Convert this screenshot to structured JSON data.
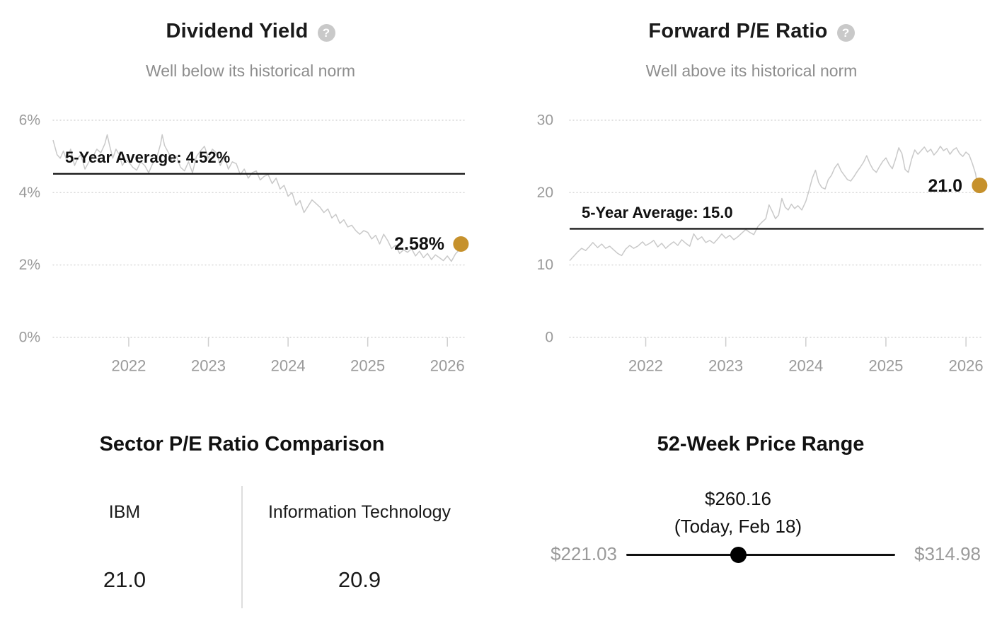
{
  "colors": {
    "accent_dot": "#c6912c",
    "series_line": "#c9c9c9",
    "grid_line": "#d6d6d6",
    "tick_mark": "#cfcfcf",
    "axis_text": "#9a9a9a",
    "subtitle_text": "#8d8d8d",
    "average_line": "#111111",
    "divider": "#dedede",
    "slider": "#111111",
    "help_icon_bg": "#c9c9c9"
  },
  "chart_data": [
    {
      "type": "line",
      "title": "Dividend Yield",
      "subtitle": "Well below its historical norm",
      "help_icon": "?",
      "legend_position": "none",
      "grid": "dotted-horizontal",
      "xlim": [
        2021.05,
        2026.22
      ],
      "ylim": [
        0,
        6
      ],
      "x_ticks": [
        {
          "value": 2022,
          "label": "2022"
        },
        {
          "value": 2023,
          "label": "2023"
        },
        {
          "value": 2024,
          "label": "2024"
        },
        {
          "value": 2025,
          "label": "2025"
        },
        {
          "value": 2026,
          "label": "2026"
        }
      ],
      "y_ticks": [
        {
          "value": 0,
          "label": "0%"
        },
        {
          "value": 2,
          "label": "2%"
        },
        {
          "value": 4,
          "label": "4%"
        },
        {
          "value": 6,
          "label": "6%"
        }
      ],
      "average": {
        "label": "5-Year Average: 4.52%",
        "value": 4.52
      },
      "current": {
        "label": "2.58%",
        "value": 2.58,
        "x": 2026.17
      },
      "series": [
        {
          "name": "Dividend Yield",
          "points": [
            [
              2021.05,
              5.45
            ],
            [
              2021.1,
              5.05
            ],
            [
              2021.14,
              4.95
            ],
            [
              2021.18,
              5.15
            ],
            [
              2021.22,
              4.9
            ],
            [
              2021.27,
              5.2
            ],
            [
              2021.32,
              4.75
            ],
            [
              2021.36,
              4.95
            ],
            [
              2021.4,
              5.05
            ],
            [
              2021.45,
              4.65
            ],
            [
              2021.5,
              4.85
            ],
            [
              2021.55,
              5.0
            ],
            [
              2021.6,
              5.2
            ],
            [
              2021.65,
              5.1
            ],
            [
              2021.7,
              5.35
            ],
            [
              2021.73,
              5.6
            ],
            [
              2021.76,
              5.3
            ],
            [
              2021.8,
              4.95
            ],
            [
              2021.84,
              5.2
            ],
            [
              2021.88,
              5.05
            ],
            [
              2021.92,
              4.75
            ],
            [
              2021.96,
              4.9
            ],
            [
              2022.0,
              4.85
            ],
            [
              2022.05,
              4.7
            ],
            [
              2022.1,
              4.62
            ],
            [
              2022.15,
              4.85
            ],
            [
              2022.2,
              4.75
            ],
            [
              2022.25,
              4.55
            ],
            [
              2022.3,
              4.8
            ],
            [
              2022.35,
              4.95
            ],
            [
              2022.4,
              5.35
            ],
            [
              2022.42,
              5.6
            ],
            [
              2022.45,
              5.3
            ],
            [
              2022.5,
              5.1
            ],
            [
              2022.55,
              4.85
            ],
            [
              2022.6,
              5.0
            ],
            [
              2022.65,
              4.7
            ],
            [
              2022.7,
              4.6
            ],
            [
              2022.75,
              4.85
            ],
            [
              2022.8,
              4.55
            ],
            [
              2022.85,
              5.0
            ],
            [
              2022.9,
              5.15
            ],
            [
              2022.95,
              5.28
            ],
            [
              2023.0,
              4.95
            ],
            [
              2023.05,
              5.2
            ],
            [
              2023.1,
              5.1
            ],
            [
              2023.15,
              4.75
            ],
            [
              2023.2,
              5.0
            ],
            [
              2023.25,
              4.65
            ],
            [
              2023.3,
              4.85
            ],
            [
              2023.35,
              4.8
            ],
            [
              2023.4,
              4.5
            ],
            [
              2023.45,
              4.65
            ],
            [
              2023.5,
              4.4
            ],
            [
              2023.55,
              4.55
            ],
            [
              2023.6,
              4.6
            ],
            [
              2023.65,
              4.35
            ],
            [
              2023.7,
              4.45
            ],
            [
              2023.75,
              4.5
            ],
            [
              2023.8,
              4.25
            ],
            [
              2023.85,
              4.4
            ],
            [
              2023.9,
              4.1
            ],
            [
              2023.95,
              4.2
            ],
            [
              2024.0,
              3.9
            ],
            [
              2024.05,
              4.0
            ],
            [
              2024.1,
              3.65
            ],
            [
              2024.15,
              3.78
            ],
            [
              2024.2,
              3.45
            ],
            [
              2024.25,
              3.62
            ],
            [
              2024.3,
              3.8
            ],
            [
              2024.35,
              3.7
            ],
            [
              2024.4,
              3.6
            ],
            [
              2024.45,
              3.45
            ],
            [
              2024.5,
              3.55
            ],
            [
              2024.55,
              3.3
            ],
            [
              2024.6,
              3.4
            ],
            [
              2024.65,
              3.15
            ],
            [
              2024.7,
              3.25
            ],
            [
              2024.75,
              3.05
            ],
            [
              2024.8,
              3.1
            ],
            [
              2024.85,
              2.95
            ],
            [
              2024.9,
              2.85
            ],
            [
              2024.95,
              2.95
            ],
            [
              2025.0,
              2.9
            ],
            [
              2025.05,
              2.72
            ],
            [
              2025.1,
              2.82
            ],
            [
              2025.15,
              2.58
            ],
            [
              2025.2,
              2.85
            ],
            [
              2025.25,
              2.68
            ],
            [
              2025.3,
              2.45
            ],
            [
              2025.35,
              2.55
            ],
            [
              2025.4,
              2.32
            ],
            [
              2025.45,
              2.42
            ],
            [
              2025.5,
              2.35
            ],
            [
              2025.55,
              2.45
            ],
            [
              2025.6,
              2.25
            ],
            [
              2025.65,
              2.38
            ],
            [
              2025.7,
              2.2
            ],
            [
              2025.75,
              2.32
            ],
            [
              2025.8,
              2.15
            ],
            [
              2025.85,
              2.28
            ],
            [
              2025.9,
              2.2
            ],
            [
              2025.95,
              2.12
            ],
            [
              2026.0,
              2.25
            ],
            [
              2026.05,
              2.1
            ],
            [
              2026.1,
              2.3
            ],
            [
              2026.14,
              2.4
            ],
            [
              2026.17,
              2.58
            ]
          ]
        }
      ]
    },
    {
      "type": "line",
      "title": "Forward P/E Ratio",
      "subtitle": "Well above its historical norm",
      "help_icon": "?",
      "legend_position": "none",
      "grid": "dotted-horizontal",
      "xlim": [
        2021.05,
        2026.22
      ],
      "ylim": [
        0,
        30
      ],
      "x_ticks": [
        {
          "value": 2022,
          "label": "2022"
        },
        {
          "value": 2023,
          "label": "2023"
        },
        {
          "value": 2024,
          "label": "2024"
        },
        {
          "value": 2025,
          "label": "2025"
        },
        {
          "value": 2026,
          "label": "2026"
        }
      ],
      "y_ticks": [
        {
          "value": 0,
          "label": "0"
        },
        {
          "value": 10,
          "label": "10"
        },
        {
          "value": 20,
          "label": "20"
        },
        {
          "value": 30,
          "label": "30"
        }
      ],
      "average": {
        "label": "5-Year Average: 15.0",
        "value": 15.0
      },
      "current": {
        "label": "21.0",
        "value": 21.0,
        "x": 2026.17
      },
      "series": [
        {
          "name": "Forward P/E Ratio",
          "points": [
            [
              2021.05,
              10.6
            ],
            [
              2021.1,
              11.2
            ],
            [
              2021.15,
              11.8
            ],
            [
              2021.2,
              12.3
            ],
            [
              2021.25,
              12.0
            ],
            [
              2021.3,
              12.6
            ],
            [
              2021.34,
              13.1
            ],
            [
              2021.4,
              12.4
            ],
            [
              2021.45,
              12.9
            ],
            [
              2021.5,
              12.3
            ],
            [
              2021.55,
              12.6
            ],
            [
              2021.6,
              12.1
            ],
            [
              2021.65,
              11.6
            ],
            [
              2021.7,
              11.3
            ],
            [
              2021.75,
              12.2
            ],
            [
              2021.8,
              12.7
            ],
            [
              2021.85,
              12.3
            ],
            [
              2021.9,
              12.6
            ],
            [
              2021.96,
              13.2
            ],
            [
              2022.0,
              12.7
            ],
            [
              2022.05,
              13.0
            ],
            [
              2022.1,
              13.4
            ],
            [
              2022.15,
              12.5
            ],
            [
              2022.2,
              13.0
            ],
            [
              2022.25,
              12.3
            ],
            [
              2022.3,
              12.8
            ],
            [
              2022.35,
              13.2
            ],
            [
              2022.4,
              12.7
            ],
            [
              2022.45,
              13.5
            ],
            [
              2022.5,
              13.0
            ],
            [
              2022.55,
              12.6
            ],
            [
              2022.6,
              14.3
            ],
            [
              2022.65,
              13.5
            ],
            [
              2022.7,
              13.9
            ],
            [
              2022.75,
              13.1
            ],
            [
              2022.8,
              13.4
            ],
            [
              2022.85,
              13.0
            ],
            [
              2022.9,
              13.6
            ],
            [
              2022.95,
              14.3
            ],
            [
              2023.0,
              13.7
            ],
            [
              2023.05,
              14.1
            ],
            [
              2023.1,
              13.5
            ],
            [
              2023.15,
              13.9
            ],
            [
              2023.2,
              14.4
            ],
            [
              2023.25,
              14.9
            ],
            [
              2023.3,
              14.5
            ],
            [
              2023.35,
              14.2
            ],
            [
              2023.4,
              15.3
            ],
            [
              2023.45,
              15.9
            ],
            [
              2023.5,
              16.4
            ],
            [
              2023.54,
              18.3
            ],
            [
              2023.58,
              17.4
            ],
            [
              2023.62,
              16.4
            ],
            [
              2023.66,
              16.9
            ],
            [
              2023.7,
              19.2
            ],
            [
              2023.74,
              18.0
            ],
            [
              2023.78,
              17.6
            ],
            [
              2023.82,
              18.4
            ],
            [
              2023.86,
              17.8
            ],
            [
              2023.9,
              18.2
            ],
            [
              2023.95,
              17.6
            ],
            [
              2024.0,
              18.8
            ],
            [
              2024.04,
              20.3
            ],
            [
              2024.08,
              22.0
            ],
            [
              2024.12,
              23.1
            ],
            [
              2024.16,
              21.4
            ],
            [
              2024.2,
              20.7
            ],
            [
              2024.24,
              20.5
            ],
            [
              2024.28,
              21.8
            ],
            [
              2024.32,
              22.4
            ],
            [
              2024.36,
              23.4
            ],
            [
              2024.4,
              24.0
            ],
            [
              2024.44,
              23.0
            ],
            [
              2024.48,
              22.4
            ],
            [
              2024.52,
              21.8
            ],
            [
              2024.56,
              21.6
            ],
            [
              2024.6,
              22.2
            ],
            [
              2024.64,
              22.9
            ],
            [
              2024.68,
              23.5
            ],
            [
              2024.72,
              24.2
            ],
            [
              2024.76,
              25.1
            ],
            [
              2024.8,
              24.0
            ],
            [
              2024.84,
              23.2
            ],
            [
              2024.88,
              22.8
            ],
            [
              2024.92,
              23.6
            ],
            [
              2024.96,
              24.3
            ],
            [
              2025.0,
              24.8
            ],
            [
              2025.04,
              23.9
            ],
            [
              2025.08,
              23.3
            ],
            [
              2025.12,
              24.6
            ],
            [
              2025.16,
              26.2
            ],
            [
              2025.2,
              25.4
            ],
            [
              2025.24,
              23.2
            ],
            [
              2025.28,
              22.8
            ],
            [
              2025.32,
              24.6
            ],
            [
              2025.36,
              25.9
            ],
            [
              2025.4,
              25.3
            ],
            [
              2025.44,
              25.8
            ],
            [
              2025.48,
              26.3
            ],
            [
              2025.52,
              25.6
            ],
            [
              2025.56,
              26.0
            ],
            [
              2025.6,
              25.2
            ],
            [
              2025.64,
              25.7
            ],
            [
              2025.68,
              26.4
            ],
            [
              2025.72,
              25.8
            ],
            [
              2025.76,
              26.1
            ],
            [
              2025.8,
              25.3
            ],
            [
              2025.84,
              25.9
            ],
            [
              2025.88,
              26.2
            ],
            [
              2025.92,
              25.4
            ],
            [
              2025.96,
              25.0
            ],
            [
              2026.0,
              25.6
            ],
            [
              2026.04,
              25.2
            ],
            [
              2026.08,
              24.0
            ],
            [
              2026.12,
              22.6
            ],
            [
              2026.15,
              20.4
            ],
            [
              2026.17,
              21.0
            ]
          ]
        }
      ]
    }
  ],
  "sector_comparison": {
    "title": "Sector P/E Ratio Comparison",
    "columns": [
      {
        "label": "IBM",
        "value": "21.0"
      },
      {
        "label": "Information Technology",
        "value": "20.9"
      }
    ]
  },
  "price_range": {
    "title": "52-Week Price Range",
    "current_label": "$260.16",
    "current_note": "(Today, Feb 18)",
    "low_label": "$221.03",
    "high_label": "$314.98",
    "low_value": 221.03,
    "high_value": 314.98,
    "current_value": 260.16
  }
}
